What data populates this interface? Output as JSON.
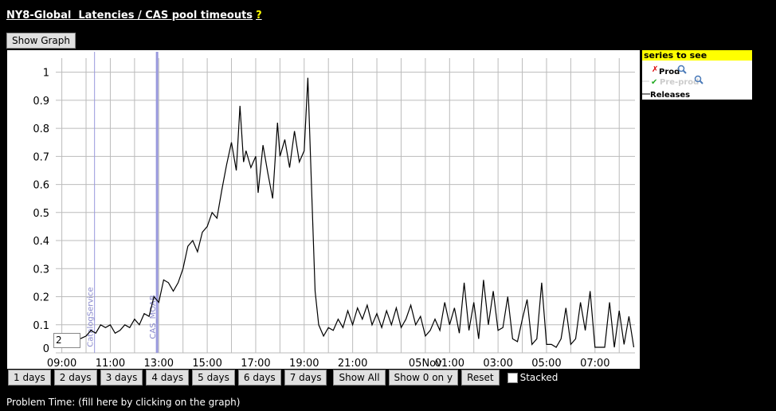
{
  "page": {
    "title": "NY8-Global  Latencies / CAS pool timeouts",
    "help": "?",
    "show_graph": "Show Graph",
    "range_input": "2",
    "buttons": [
      "1 days",
      "2 days",
      "3 days",
      "4 days",
      "5 days",
      "6 days",
      "7 days",
      "Show All",
      "Show 0 on y",
      "Reset"
    ],
    "stacked": "Stacked",
    "problem_time": "Problem Time: (fill here by clicking on the graph)"
  },
  "chart_data": {
    "type": "line",
    "x": [
      9.75,
      10.0,
      10.2,
      10.4,
      10.6,
      10.8,
      11.0,
      11.2,
      11.4,
      11.6,
      11.8,
      12.0,
      12.2,
      12.4,
      12.6,
      12.8,
      13.0,
      13.2,
      13.4,
      13.6,
      13.8,
      14.0,
      14.2,
      14.4,
      14.6,
      14.8,
      15.0,
      15.2,
      15.4,
      15.6,
      15.8,
      16.0,
      16.2,
      16.35,
      16.5,
      16.6,
      16.8,
      17.0,
      17.1,
      17.3,
      17.5,
      17.7,
      17.9,
      18.0,
      18.2,
      18.4,
      18.6,
      18.8,
      19.0,
      19.15,
      19.3,
      19.45,
      19.6,
      19.8,
      20.0,
      20.2,
      20.4,
      20.6,
      20.8,
      21.0,
      21.2,
      21.4,
      21.6,
      21.8,
      22.0,
      22.2,
      22.4,
      22.6,
      22.8,
      23.0,
      23.2,
      23.4,
      23.6,
      23.8,
      24.0,
      24.2,
      24.4,
      24.6,
      24.8,
      25.0,
      25.2,
      25.4,
      25.6,
      25.8,
      26.0,
      26.2,
      26.4,
      26.6,
      26.8,
      27.0,
      27.2,
      27.4,
      27.6,
      27.8,
      28.0,
      28.2,
      28.4,
      28.6,
      28.8,
      29.0,
      29.2,
      29.4,
      29.6,
      29.8,
      30.0,
      30.2,
      30.4,
      30.6,
      30.8,
      31.0,
      31.2,
      31.4,
      31.6,
      31.8,
      32.0,
      32.2,
      32.4,
      32.6
    ],
    "series": [
      {
        "name": "Prod",
        "color": "#000000",
        "values": [
          0.05,
          0.06,
          0.08,
          0.07,
          0.1,
          0.09,
          0.1,
          0.07,
          0.08,
          0.1,
          0.09,
          0.12,
          0.1,
          0.14,
          0.13,
          0.2,
          0.18,
          0.26,
          0.25,
          0.22,
          0.25,
          0.3,
          0.38,
          0.4,
          0.36,
          0.43,
          0.45,
          0.5,
          0.48,
          0.58,
          0.67,
          0.75,
          0.65,
          0.88,
          0.68,
          0.72,
          0.66,
          0.7,
          0.57,
          0.74,
          0.64,
          0.55,
          0.82,
          0.7,
          0.76,
          0.66,
          0.79,
          0.68,
          0.72,
          0.98,
          0.6,
          0.22,
          0.1,
          0.06,
          0.09,
          0.08,
          0.12,
          0.09,
          0.15,
          0.1,
          0.16,
          0.12,
          0.17,
          0.1,
          0.14,
          0.09,
          0.15,
          0.1,
          0.16,
          0.09,
          0.12,
          0.17,
          0.1,
          0.13,
          0.06,
          0.08,
          0.12,
          0.08,
          0.18,
          0.1,
          0.16,
          0.07,
          0.25,
          0.08,
          0.18,
          0.05,
          0.26,
          0.1,
          0.22,
          0.08,
          0.09,
          0.2,
          0.05,
          0.04,
          0.12,
          0.19,
          0.03,
          0.05,
          0.25,
          0.03,
          0.03,
          0.02,
          0.05,
          0.16,
          0.03,
          0.05,
          0.18,
          0.08,
          0.22,
          0.02,
          0.02,
          0.02,
          0.18,
          0.02,
          0.15,
          0.03,
          0.13,
          0.02
        ]
      }
    ],
    "hidden_series": [
      "Pre-prod"
    ],
    "legend_title": "series to see",
    "releases_label": "Releases",
    "releases": [
      {
        "label": "CatalogService",
        "x": 10.35
      },
      {
        "label": "CAS_MOAB",
        "x": 12.93
      }
    ],
    "xlim": [
      8.75,
      32.65
    ],
    "xticks": [
      {
        "value": 9,
        "label": "09:00"
      },
      {
        "value": 11,
        "label": "11:00"
      },
      {
        "value": 13,
        "label": "13:00"
      },
      {
        "value": 15,
        "label": "15:00"
      },
      {
        "value": 17,
        "label": "17:00"
      },
      {
        "value": 19,
        "label": "19:00"
      },
      {
        "value": 21,
        "label": "21:00"
      },
      {
        "value": 24,
        "label": "05Nov"
      },
      {
        "value": 25,
        "label": "01:00"
      },
      {
        "value": 27,
        "label": "03:00"
      },
      {
        "value": 29,
        "label": "05:00"
      },
      {
        "value": 31,
        "label": "07:00"
      }
    ],
    "minor_xticks": [
      10,
      12,
      14,
      16,
      18,
      20,
      22,
      23,
      26,
      28,
      30,
      32
    ],
    "ylim": [
      0,
      1.05
    ],
    "yticks": [
      0,
      0.1,
      0.2,
      0.3,
      0.4,
      0.5,
      0.6,
      0.7,
      0.8,
      0.9,
      1
    ],
    "grid": true
  }
}
